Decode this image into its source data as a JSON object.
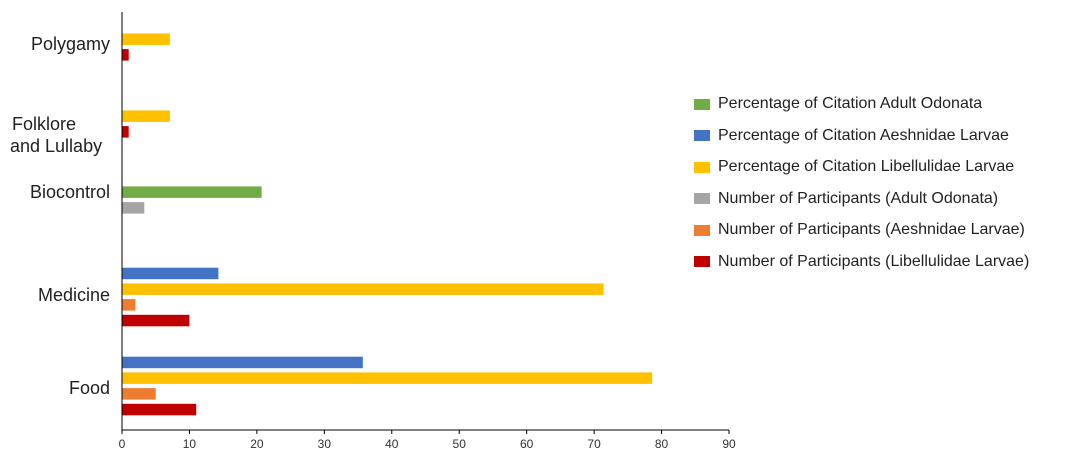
{
  "chart_data": {
    "type": "bar",
    "orientation": "horizontal",
    "categories": [
      "Food",
      "Medicine",
      "Biocontrol",
      "Folklore and Lullaby",
      "Polygamy"
    ],
    "series": [
      {
        "name": "Percentage of Citation Adult Odonata",
        "color": "#70ad47",
        "values": [
          0,
          0,
          20.7,
          0,
          0
        ]
      },
      {
        "name": "Percentage of Citation Aeshnidae Larvae",
        "color": "#4472c4",
        "values": [
          35.7,
          14.3,
          0,
          0,
          0
        ]
      },
      {
        "name": "Percentage of Citation Libellulidae Larvae",
        "color": "#ffc000",
        "values": [
          78.6,
          71.4,
          0,
          7.1,
          7.1
        ]
      },
      {
        "name": "Number of Participants (Adult Odonata)",
        "color": "#a5a5a5",
        "values": [
          0,
          0,
          3.3,
          0,
          0
        ]
      },
      {
        "name": "Number of Participants (Aeshnidae Larvae)",
        "color": "#ed7d31",
        "values": [
          5,
          2,
          0,
          0,
          0
        ]
      },
      {
        "name": "Number of Participants (Libellulidae Larvae)",
        "color": "#c00000",
        "values": [
          11,
          10,
          0,
          1,
          1
        ]
      }
    ],
    "xlim": [
      0,
      90
    ],
    "xticks": [
      "0",
      "10",
      "20",
      "30",
      "40",
      "50",
      "60",
      "70",
      "80",
      "90"
    ],
    "grid": false,
    "legend_position": "right"
  },
  "category_labels": {
    "food": "Food",
    "medicine": "Medicine",
    "biocontrol": "Biocontrol",
    "folklore_line1": "Folklore",
    "folklore_line2": "and Lullaby",
    "polygamy": "Polygamy"
  }
}
